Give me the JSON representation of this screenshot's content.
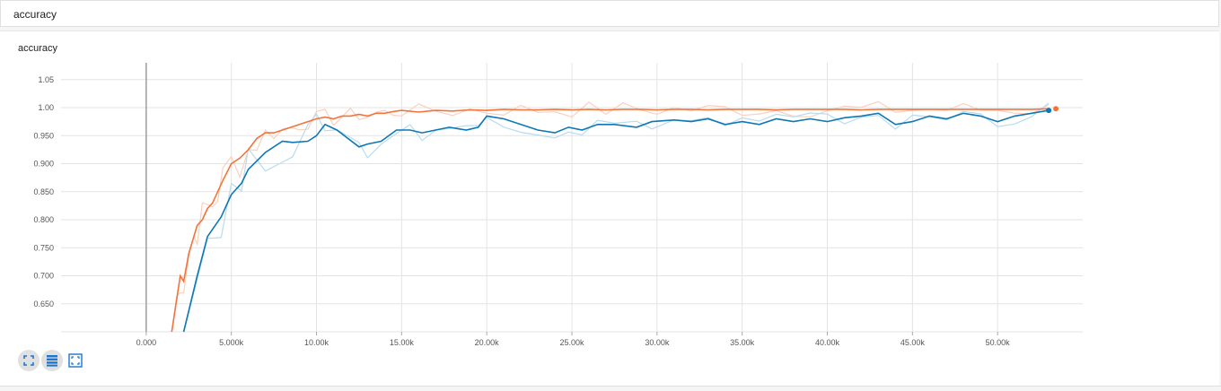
{
  "header": {
    "title": "accuracy"
  },
  "card": {
    "title": "accuracy"
  },
  "toolbar": {
    "expand_icon": "expand-icon",
    "data_table_icon": "list-icon",
    "fit_domain_icon": "fit-domain-icon"
  },
  "colors": {
    "orange": "#f4733b",
    "orange_raw": "#fbd0bd",
    "blue": "#0f77b3",
    "blue_raw": "#b7dcee",
    "grid": "#e3e3e3",
    "zero_line": "#9e9e9e"
  },
  "chart_data": {
    "type": "line",
    "title": "accuracy",
    "xlabel": "",
    "ylabel": "",
    "xlim": [
      -5000,
      55000
    ],
    "ylim": [
      0.6,
      1.08
    ],
    "grid": true,
    "x_ticks": [
      0,
      5000,
      10000,
      15000,
      20000,
      25000,
      30000,
      35000,
      40000,
      45000,
      50000
    ],
    "x_tick_labels": [
      "0.000",
      "5.000k",
      "10.00k",
      "15.00k",
      "20.00k",
      "25.00k",
      "30.00k",
      "35.00k",
      "40.00k",
      "45.00k",
      "50.00k"
    ],
    "y_ticks": [
      0.65,
      0.7,
      0.75,
      0.8,
      0.85,
      0.9,
      0.95,
      1.0,
      1.05
    ],
    "y_tick_labels": [
      "0.650",
      "0.700",
      "0.750",
      "0.800",
      "0.850",
      "0.900",
      "0.950",
      "1.00",
      "1.05"
    ],
    "series": [
      {
        "color": "#f4733b",
        "x": [
          1500,
          1800,
          2000,
          2200,
          2500,
          2800,
          3000,
          3300,
          3600,
          3900,
          4200,
          4500,
          5000,
          5500,
          6000,
          6500,
          7000,
          7500,
          8000,
          8500,
          9000,
          9500,
          10000,
          10500,
          11000,
          11500,
          12000,
          12500,
          13000,
          13500,
          14000,
          14500,
          15000,
          16000,
          17000,
          18000,
          19000,
          20000,
          21000,
          22000,
          23000,
          24000,
          25000,
          26000,
          27000,
          28000,
          29000,
          30000,
          31000,
          32000,
          33000,
          34000,
          35000,
          36000,
          37000,
          38000,
          39000,
          40000,
          41000,
          42000,
          43000,
          44000,
          45000,
          46000,
          47000,
          48000,
          49000,
          50000,
          51000,
          52000,
          53000
        ],
        "y": [
          0.6,
          0.66,
          0.7,
          0.69,
          0.74,
          0.77,
          0.79,
          0.8,
          0.82,
          0.83,
          0.85,
          0.87,
          0.9,
          0.91,
          0.925,
          0.945,
          0.955,
          0.955,
          0.96,
          0.965,
          0.97,
          0.975,
          0.98,
          0.983,
          0.98,
          0.985,
          0.985,
          0.988,
          0.985,
          0.99,
          0.99,
          0.993,
          0.995,
          0.992,
          0.995,
          0.994,
          0.996,
          0.995,
          0.997,
          0.996,
          0.996,
          0.997,
          0.996,
          0.997,
          0.996,
          0.997,
          0.997,
          0.996,
          0.997,
          0.997,
          0.996,
          0.997,
          0.997,
          0.997,
          0.996,
          0.997,
          0.997,
          0.997,
          0.997,
          0.996,
          0.997,
          0.997,
          0.997,
          0.997,
          0.997,
          0.997,
          0.997,
          0.997,
          0.997,
          0.997,
          0.998
        ]
      },
      {
        "color": "#0f77b3",
        "x": [
          2200,
          3000,
          3600,
          4400,
          5000,
          5600,
          6000,
          7000,
          8000,
          8600,
          9500,
          10000,
          10500,
          11200,
          12500,
          13000,
          13800,
          14700,
          15500,
          16200,
          17000,
          17800,
          18800,
          19500,
          20000,
          21000,
          22000,
          23000,
          24000,
          24800,
          25600,
          26500,
          27500,
          28800,
          29700,
          31000,
          32000,
          33000,
          34000,
          35000,
          36000,
          37000,
          38000,
          39000,
          40000,
          41000,
          42000,
          43000,
          44000,
          45000,
          46000,
          47000,
          48000,
          49000,
          50000,
          51000,
          52000,
          53000
        ],
        "y": [
          0.6,
          0.7,
          0.77,
          0.805,
          0.845,
          0.865,
          0.89,
          0.92,
          0.94,
          0.938,
          0.94,
          0.95,
          0.97,
          0.96,
          0.93,
          0.935,
          0.94,
          0.96,
          0.96,
          0.955,
          0.96,
          0.965,
          0.96,
          0.965,
          0.985,
          0.98,
          0.97,
          0.96,
          0.955,
          0.965,
          0.96,
          0.97,
          0.97,
          0.965,
          0.975,
          0.978,
          0.975,
          0.98,
          0.97,
          0.975,
          0.97,
          0.98,
          0.975,
          0.98,
          0.975,
          0.982,
          0.985,
          0.99,
          0.97,
          0.975,
          0.985,
          0.98,
          0.99,
          0.985,
          0.975,
          0.985,
          0.99,
          0.995
        ]
      }
    ]
  }
}
